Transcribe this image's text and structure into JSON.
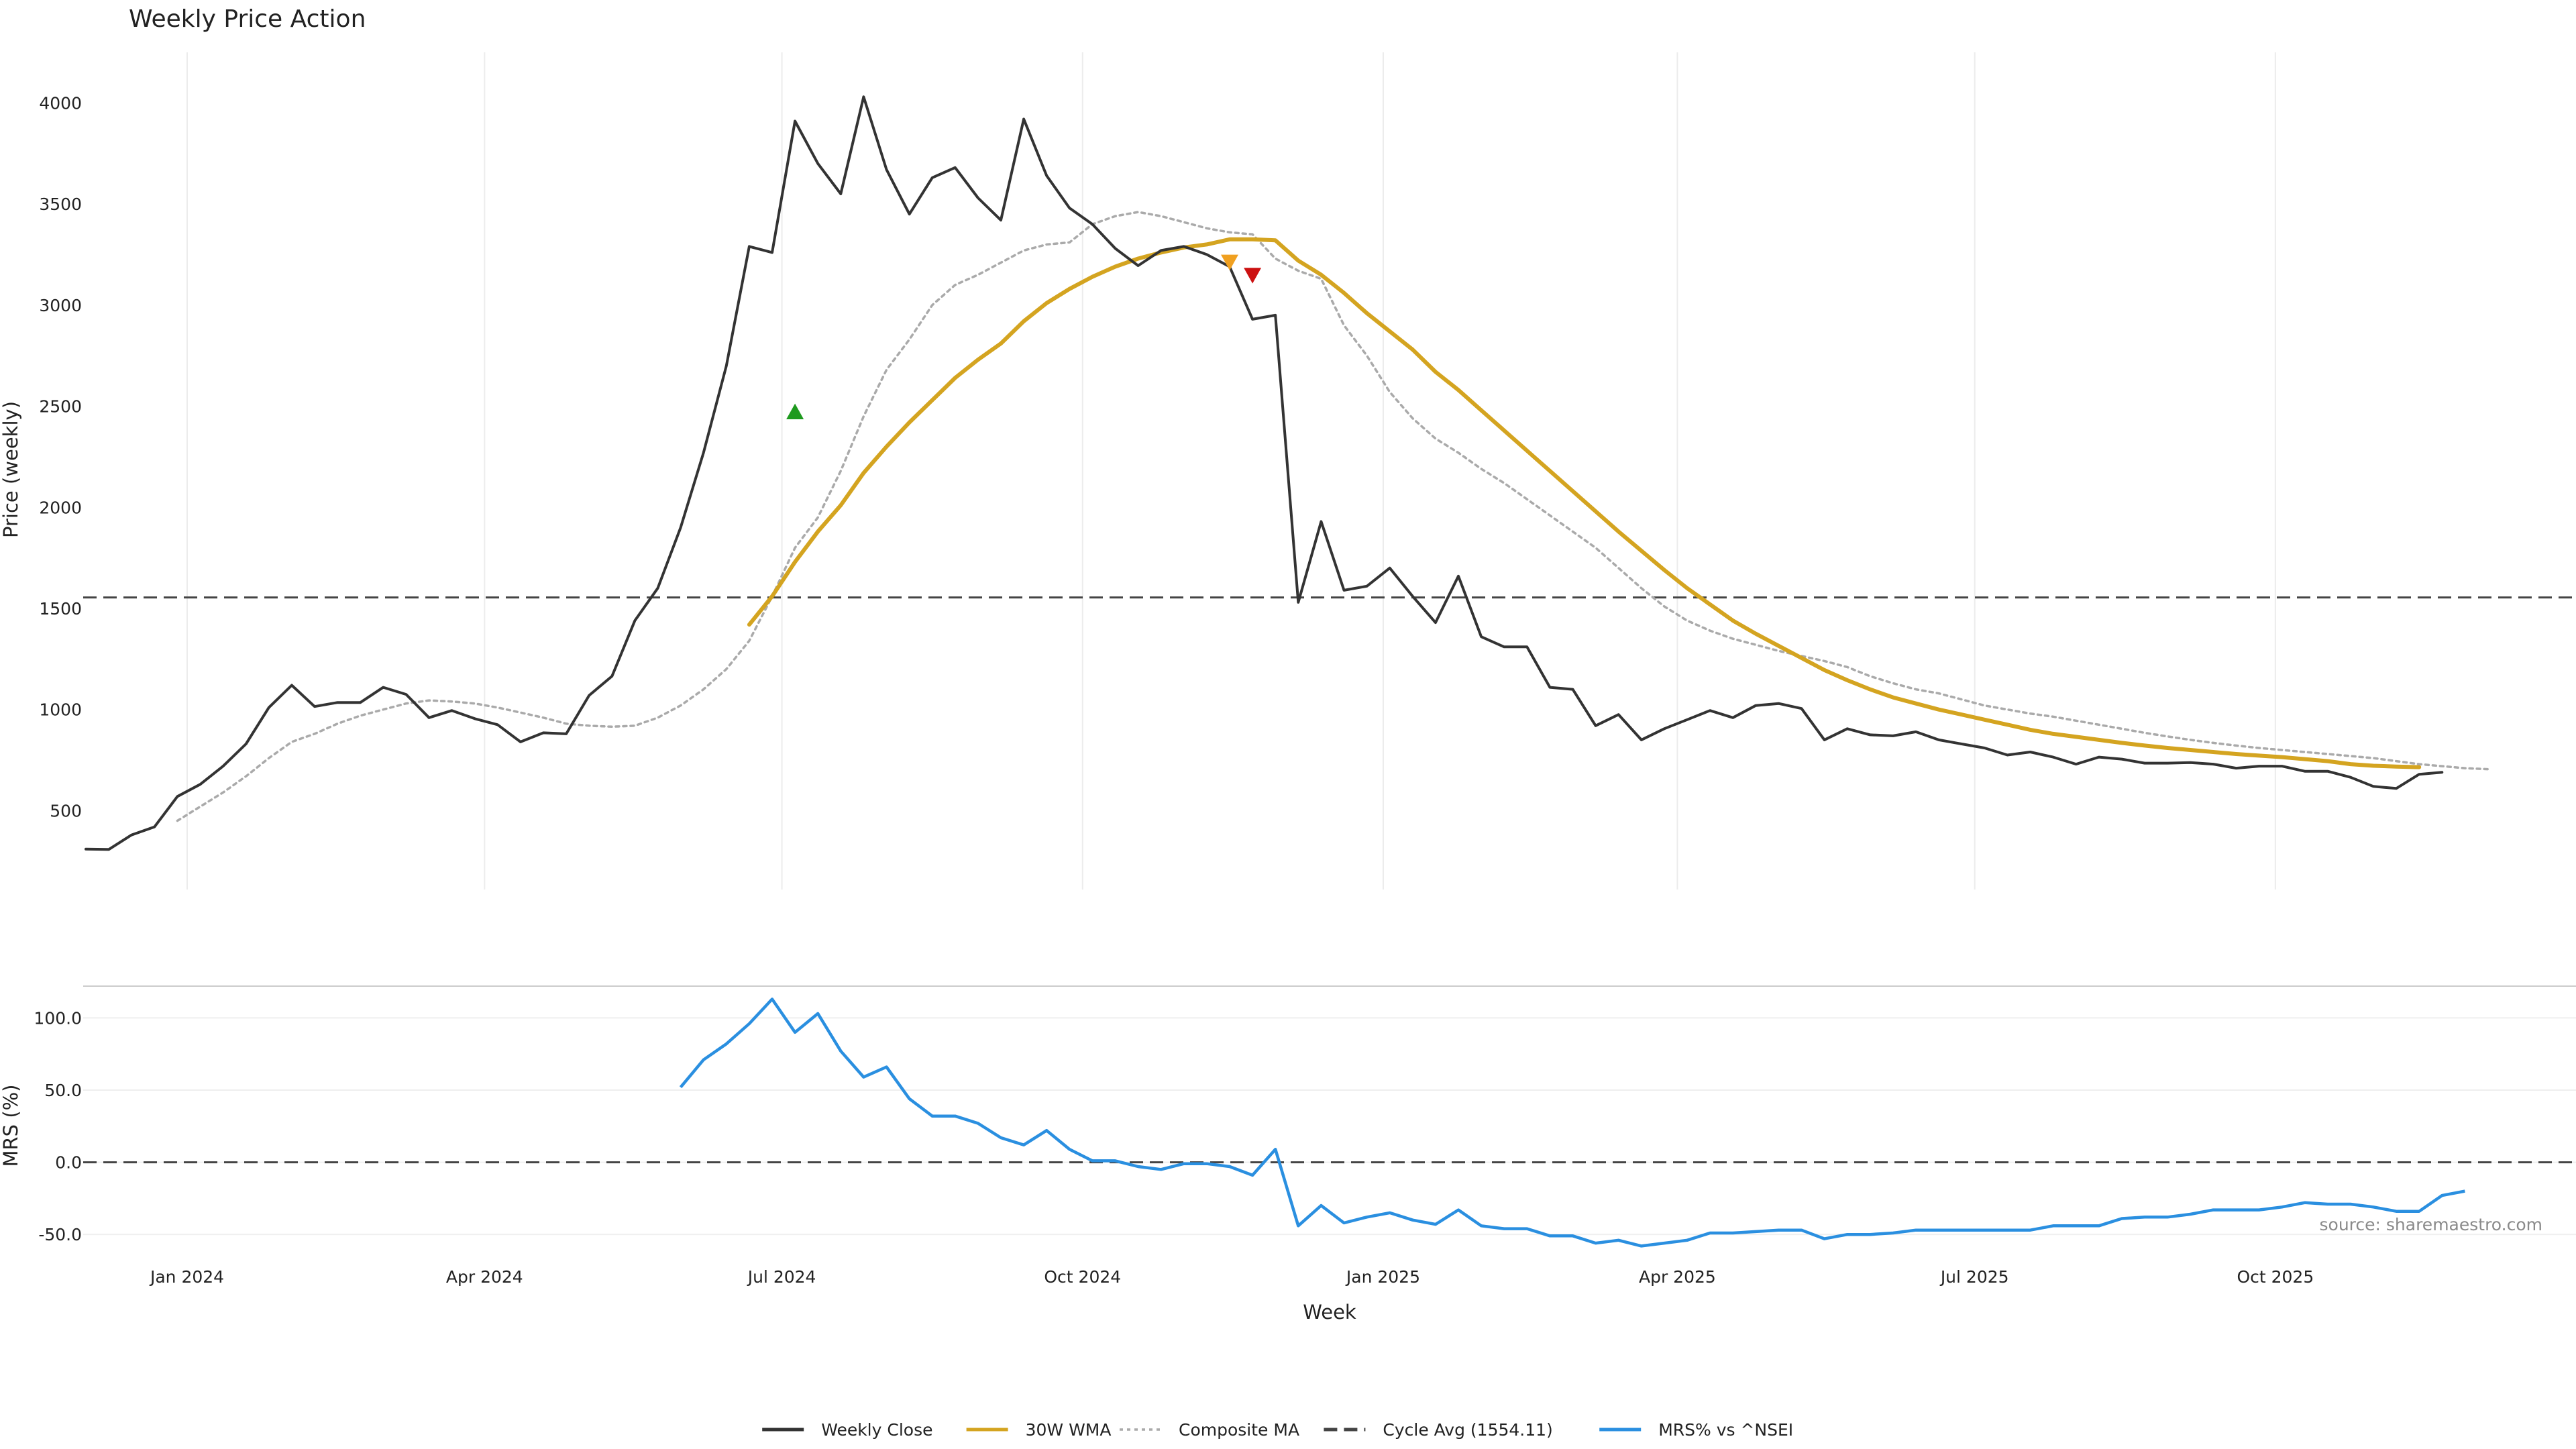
{
  "title": "Weekly Price Action",
  "source_text": "source: sharemaestro.com",
  "colors": {
    "close": "#333333",
    "wma": "#d4a420",
    "composite": "#aaaaaa",
    "cycle": "#444444",
    "mrs": "#2a8fe0",
    "buy": "#1e9a1e",
    "sell_orange": "#f0a020",
    "sell_red": "#cc1111"
  },
  "chart_data": [
    {
      "type": "line",
      "ylabel": "Price (weekly)",
      "xlabel": "",
      "x_start": "2023-12-01",
      "x_step_days": 7,
      "ylim": [
        110,
        4250
      ],
      "yticks": [
        500,
        1000,
        1500,
        2000,
        2500,
        3000,
        3500,
        4000
      ],
      "grid": "vertical",
      "series": [
        {
          "name": "Weekly Close",
          "style": "solid",
          "offset": 0,
          "values": [
            310,
            308,
            380,
            420,
            570,
            630,
            720,
            830,
            1010,
            1120,
            1015,
            1035,
            1035,
            1110,
            1075,
            960,
            995,
            955,
            925,
            840,
            885,
            880,
            1070,
            1165,
            1440,
            1600,
            1900,
            2270,
            2700,
            3290,
            3260,
            3910,
            3700,
            3550,
            4030,
            3670,
            3450,
            3630,
            3680,
            3530,
            3420,
            3920,
            3640,
            3480,
            3400,
            3280,
            3195,
            3270,
            3290,
            3250,
            3190,
            2930,
            2950,
            1530,
            1930,
            1590,
            1610,
            1700,
            1560,
            1430,
            1660,
            1360,
            1310,
            1310,
            1110,
            1100,
            920,
            975,
            850,
            905,
            950,
            995,
            960,
            1020,
            1030,
            1005,
            850,
            905,
            875,
            870,
            890,
            850,
            830,
            810,
            775,
            790,
            765,
            730,
            765,
            755,
            735,
            735,
            738,
            730,
            710,
            720,
            720,
            695,
            695,
            665,
            620,
            610,
            680,
            690
          ]
        },
        {
          "name": "30W WMA",
          "style": "solid",
          "offset": 29,
          "values": [
            1420,
            1560,
            1730,
            1880,
            2010,
            2170,
            2300,
            2420,
            2530,
            2640,
            2730,
            2810,
            2920,
            3010,
            3080,
            3140,
            3190,
            3230,
            3260,
            3285,
            3300,
            3325,
            3325,
            3320,
            3220,
            3150,
            3060,
            2960,
            2870,
            2780,
            2670,
            2580,
            2480,
            2380,
            2280,
            2180,
            2080,
            1980,
            1880,
            1785,
            1690,
            1600,
            1520,
            1440,
            1375,
            1315,
            1255,
            1195,
            1145,
            1100,
            1060,
            1030,
            1000,
            975,
            950,
            925,
            900,
            880,
            865,
            850,
            835,
            822,
            810,
            800,
            790,
            780,
            772,
            765,
            755,
            745,
            730,
            722,
            718,
            715
          ]
        },
        {
          "name": "Composite MA",
          "style": "dotted",
          "offset": 4,
          "values": [
            450,
            520,
            590,
            670,
            760,
            840,
            880,
            930,
            970,
            1000,
            1030,
            1045,
            1040,
            1030,
            1010,
            985,
            960,
            930,
            920,
            915,
            920,
            960,
            1020,
            1100,
            1200,
            1340,
            1560,
            1800,
            1950,
            2180,
            2450,
            2680,
            2830,
            3000,
            3100,
            3150,
            3210,
            3270,
            3300,
            3310,
            3400,
            3440,
            3460,
            3440,
            3410,
            3380,
            3360,
            3350,
            3230,
            3170,
            3130,
            2900,
            2750,
            2570,
            2440,
            2340,
            2270,
            2190,
            2120,
            2040,
            1960,
            1880,
            1800,
            1700,
            1600,
            1510,
            1440,
            1390,
            1350,
            1320,
            1290,
            1265,
            1240,
            1210,
            1165,
            1130,
            1100,
            1080,
            1050,
            1020,
            1000,
            980,
            965,
            945,
            925,
            905,
            885,
            867,
            850,
            835,
            822,
            810,
            800,
            790,
            780,
            770,
            760,
            745,
            730,
            720,
            710,
            705
          ]
        }
      ],
      "reference_lines": [
        {
          "name": "Cycle Avg (1554.11)",
          "value": 1554.11,
          "style": "dashed"
        }
      ],
      "markers": [
        {
          "type": "triangle-up",
          "color": "buy",
          "x_index": 31,
          "y": 2470
        },
        {
          "type": "triangle-down",
          "color": "sell_orange",
          "x_index": 50,
          "y": 3215
        },
        {
          "type": "triangle-down",
          "color": "sell_red",
          "x_index": 51,
          "y": 3150
        }
      ]
    },
    {
      "type": "line",
      "ylabel": "MRS (%)",
      "xlabel": "Week",
      "ylim": [
        -62,
        122
      ],
      "yticks": [
        -50.0,
        0.0,
        50.0,
        100.0
      ],
      "series": [
        {
          "name": "MRS% vs ^NSEI",
          "style": "solid",
          "offset": 26,
          "values": [
            52,
            71,
            82,
            96,
            113,
            90,
            103,
            77,
            59,
            66,
            44,
            32,
            32,
            27,
            17,
            12,
            22,
            9,
            1,
            1,
            -3,
            -5,
            -1,
            -1,
            -3,
            -9,
            9,
            -44,
            -30,
            -42,
            -38,
            -35,
            -40,
            -43,
            -33,
            -44,
            -46,
            -46,
            -51,
            -51,
            -56,
            -54,
            -58,
            -56,
            -54,
            -49,
            -49,
            -48,
            -47,
            -47,
            -53,
            -50,
            -50,
            -49,
            -47,
            -47,
            -47,
            -47,
            -47,
            -47,
            -44,
            -44,
            -44,
            -39,
            -38,
            -38,
            -36,
            -33,
            -33,
            -33,
            -31,
            -28,
            -29,
            -29,
            -31,
            -34,
            -34,
            -23,
            -20
          ]
        }
      ],
      "reference_lines": [
        {
          "name": "",
          "value": 0,
          "style": "dashed"
        }
      ],
      "xticks": [
        {
          "label": "Jan 2024",
          "date": "2024-01-01"
        },
        {
          "label": "Apr 2024",
          "date": "2024-04-01"
        },
        {
          "label": "Jul 2024",
          "date": "2024-07-01"
        },
        {
          "label": "Oct 2024",
          "date": "2024-10-01"
        },
        {
          "label": "Jan 2025",
          "date": "2025-01-01"
        },
        {
          "label": "Apr 2025",
          "date": "2025-04-01"
        },
        {
          "label": "Jul 2025",
          "date": "2025-07-01"
        },
        {
          "label": "Oct 2025",
          "date": "2025-10-01"
        }
      ]
    }
  ],
  "legend": {
    "placement": "bottom-center",
    "items": [
      {
        "label": "Weekly Close",
        "color": "close",
        "style": "solid"
      },
      {
        "label": "30W WMA",
        "color": "wma",
        "style": "solid"
      },
      {
        "label": "Composite MA",
        "color": "composite",
        "style": "dotted"
      },
      {
        "label": "Cycle Avg (1554.11)",
        "color": "cycle",
        "style": "dashed"
      },
      {
        "label": "MRS% vs ^NSEI",
        "color": "mrs",
        "style": "solid"
      }
    ]
  }
}
